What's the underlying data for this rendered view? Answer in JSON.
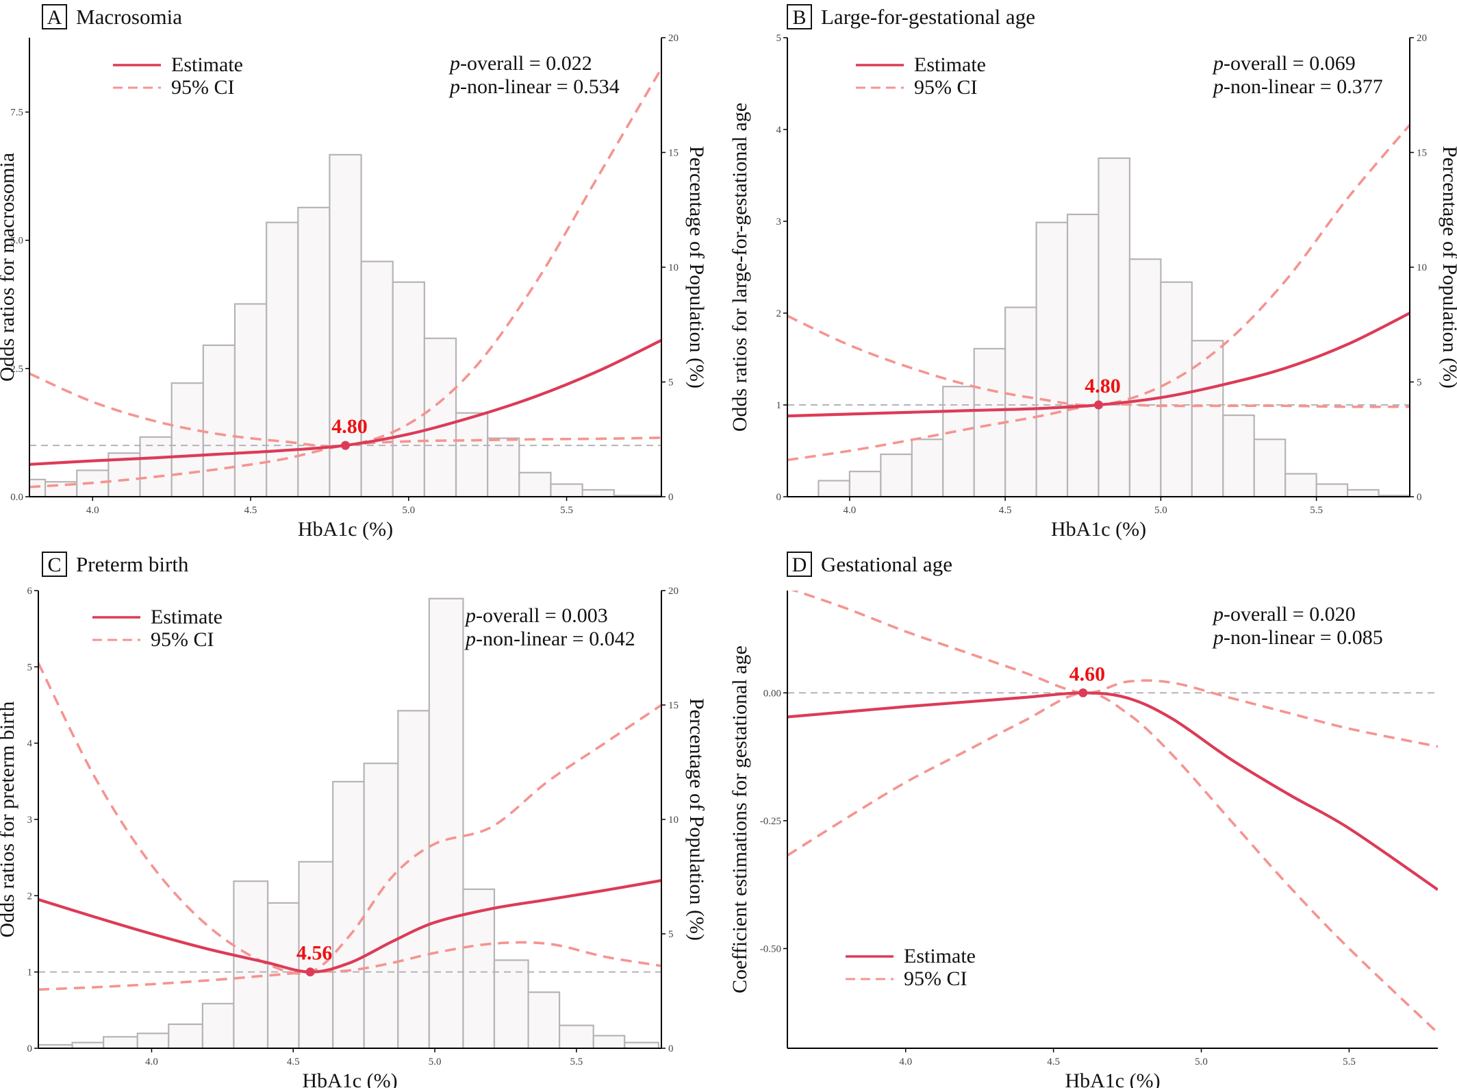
{
  "colors": {
    "estimate": "#dc3b57",
    "ci": "#f59490",
    "ref_line": "#b4b4b8",
    "bar_fill": "#f9f7f8",
    "bar_stroke": "#b6b4b6",
    "ref_label": "#ee1111",
    "axis": "#000000"
  },
  "legend": {
    "estimate": "Estimate",
    "ci": "95% CI"
  },
  "chart_data": [
    {
      "type": "line",
      "letter": "A",
      "title": "Macrosomia",
      "xlabel": "HbA1c (%)",
      "ylabel": "Odds ratios for macrosomia",
      "y2label": "Percentage of Population (%)",
      "xlim": [
        3.8,
        5.8
      ],
      "ylim": [
        0,
        8.95
      ],
      "y2lim": [
        0,
        20
      ],
      "xticks": [
        "4.0",
        "4.5",
        "5.0",
        "5.5"
      ],
      "yticks": [
        "0.0",
        "2.5",
        "5.0",
        "7.5"
      ],
      "y2ticks": [
        "0",
        "5",
        "10",
        "15",
        "20"
      ],
      "grid": false,
      "legend_position": "top-left",
      "p_overall_label": "-overall = 0.022",
      "p_nonlinear_label": "-non-linear = 0.534",
      "ref": {
        "x": 4.8,
        "y": 1,
        "label": "4.80"
      },
      "hline": 1,
      "histogram": {
        "bin_edges": [
          3.75,
          3.85,
          3.95,
          4.05,
          4.15,
          4.25,
          4.35,
          4.45,
          4.55,
          4.65,
          4.75,
          4.85,
          4.95,
          5.05,
          5.15,
          5.25,
          5.35,
          5.45,
          5.55,
          5.65,
          5.75,
          5.85
        ],
        "percent": [
          0.75,
          0.65,
          1.15,
          1.9,
          2.6,
          4.95,
          6.6,
          8.4,
          11.95,
          12.6,
          14.9,
          10.25,
          9.35,
          6.9,
          3.65,
          2.55,
          1.05,
          0.55,
          0.3,
          0.05,
          0.05
        ]
      },
      "estimate": {
        "x": [
          3.8,
          4.0,
          4.2,
          4.4,
          4.6,
          4.8,
          5.0,
          5.2,
          5.4,
          5.6,
          5.8
        ],
        "y": [
          0.63,
          0.7,
          0.76,
          0.83,
          0.9,
          1.0,
          1.22,
          1.55,
          1.95,
          2.45,
          3.05
        ]
      },
      "ci_upper": {
        "x": [
          3.8,
          4.0,
          4.2,
          4.4,
          4.6,
          4.8,
          5.0,
          5.2,
          5.4,
          5.6,
          5.8
        ],
        "y": [
          2.4,
          1.85,
          1.47,
          1.22,
          1.08,
          1.0,
          1.42,
          2.45,
          4.15,
          6.25,
          8.35
        ]
      },
      "ci_lower": {
        "x": [
          3.8,
          4.0,
          4.2,
          4.4,
          4.6,
          4.8,
          5.0,
          5.2,
          5.4,
          5.6,
          5.8
        ],
        "y": [
          0.19,
          0.27,
          0.39,
          0.54,
          0.73,
          1.0,
          1.08,
          1.1,
          1.12,
          1.13,
          1.15
        ]
      }
    },
    {
      "type": "line",
      "letter": "B",
      "title": "Large-for-gestational age",
      "xlabel": "HbA1c (%)",
      "ylabel": "Odds ratios for large-for-gestational age",
      "y2label": "Percentage of Population (%)",
      "xlim": [
        3.8,
        5.8
      ],
      "ylim": [
        0,
        5
      ],
      "y2lim": [
        0,
        20
      ],
      "xticks": [
        "4.0",
        "4.5",
        "5.0",
        "5.5"
      ],
      "yticks": [
        "0",
        "1",
        "2",
        "3",
        "4",
        "5"
      ],
      "y2ticks": [
        "0",
        "5",
        "10",
        "15",
        "20"
      ],
      "grid": false,
      "legend_position": "top-left",
      "p_overall_label": "-overall = 0.069",
      "p_nonlinear_label": "-non-linear = 0.377",
      "ref": {
        "x": 4.8,
        "y": 1,
        "label": "4.80"
      },
      "hline": 1,
      "histogram": {
        "bin_edges": [
          3.9,
          4.0,
          4.1,
          4.2,
          4.3,
          4.4,
          4.5,
          4.6,
          4.7,
          4.8,
          4.9,
          5.0,
          5.1,
          5.2,
          5.3,
          5.4,
          5.5,
          5.6,
          5.7,
          5.8
        ],
        "percent": [
          0.7,
          1.1,
          1.85,
          2.5,
          4.8,
          6.45,
          8.25,
          11.95,
          12.3,
          14.75,
          10.35,
          9.35,
          6.8,
          3.55,
          2.5,
          1.0,
          0.55,
          0.3,
          0.05
        ]
      },
      "estimate": {
        "x": [
          3.8,
          4.0,
          4.2,
          4.4,
          4.6,
          4.8,
          5.0,
          5.2,
          5.4,
          5.6,
          5.8
        ],
        "y": [
          0.88,
          0.9,
          0.92,
          0.94,
          0.96,
          1.0,
          1.08,
          1.22,
          1.4,
          1.66,
          2.0
        ]
      },
      "ci_upper": {
        "x": [
          3.8,
          4.0,
          4.2,
          4.4,
          4.6,
          4.8,
          5.0,
          5.2,
          5.4,
          5.6,
          5.8
        ],
        "y": [
          1.97,
          1.65,
          1.4,
          1.2,
          1.07,
          1.0,
          1.2,
          1.65,
          2.35,
          3.25,
          4.05
        ]
      },
      "ci_lower": {
        "x": [
          3.8,
          4.0,
          4.2,
          4.4,
          4.6,
          4.8,
          5.0,
          5.2,
          5.4,
          5.6,
          5.8
        ],
        "y": [
          0.4,
          0.5,
          0.62,
          0.75,
          0.87,
          1.0,
          0.99,
          0.99,
          0.99,
          0.98,
          0.98
        ]
      }
    },
    {
      "type": "line",
      "letter": "C",
      "title": "Preterm birth",
      "xlabel": "HbA1c (%)",
      "ylabel": "Odds ratios for preterm birth",
      "y2label": "Percentage of Population (%)",
      "xlim": [
        3.6,
        5.8
      ],
      "ylim": [
        0,
        6
      ],
      "y2lim": [
        0,
        20
      ],
      "xticks": [
        "4.0",
        "4.5",
        "5.0",
        "5.5"
      ],
      "yticks": [
        "0",
        "1",
        "2",
        "3",
        "4",
        "5",
        "6"
      ],
      "y2ticks": [
        "0",
        "5",
        "10",
        "15",
        "20"
      ],
      "grid": false,
      "legend_position": "top-left",
      "p_overall_label": "-overall = 0.003",
      "p_nonlinear_label": "-non-linear = 0.042",
      "ref": {
        "x": 4.56,
        "y": 1,
        "label": "4.56"
      },
      "hline": 1,
      "histogram": {
        "bin_edges": [
          3.6,
          3.72,
          3.83,
          3.95,
          4.06,
          4.18,
          4.29,
          4.41,
          4.52,
          4.64,
          4.75,
          4.87,
          4.98,
          5.1,
          5.21,
          5.33,
          5.44,
          5.56,
          5.67,
          5.79
        ],
        "percent": [
          0.15,
          0.25,
          0.5,
          0.65,
          1.05,
          1.95,
          7.3,
          6.35,
          8.15,
          11.65,
          12.45,
          14.75,
          19.65,
          6.95,
          3.85,
          2.45,
          1.0,
          0.55,
          0.25
        ]
      },
      "estimate": {
        "x": [
          3.6,
          3.8,
          4.0,
          4.2,
          4.4,
          4.56,
          4.7,
          4.85,
          5.0,
          5.2,
          5.4,
          5.6,
          5.8
        ],
        "y": [
          1.95,
          1.72,
          1.5,
          1.3,
          1.13,
          1.0,
          1.12,
          1.4,
          1.65,
          1.83,
          1.95,
          2.07,
          2.2
        ]
      },
      "ci_upper": {
        "x": [
          3.6,
          3.8,
          4.0,
          4.2,
          4.4,
          4.56,
          4.7,
          4.85,
          5.0,
          5.2,
          5.4,
          5.6,
          5.8
        ],
        "y": [
          5.05,
          3.55,
          2.4,
          1.6,
          1.12,
          1.0,
          1.48,
          2.25,
          2.68,
          2.9,
          3.5,
          4.0,
          4.5
        ]
      },
      "ci_lower": {
        "x": [
          3.6,
          3.8,
          4.0,
          4.2,
          4.4,
          4.56,
          4.7,
          4.85,
          5.0,
          5.2,
          5.4,
          5.6,
          5.8
        ],
        "y": [
          0.77,
          0.8,
          0.84,
          0.89,
          0.95,
          1.0,
          1.02,
          1.12,
          1.25,
          1.37,
          1.37,
          1.2,
          1.08
        ]
      }
    },
    {
      "type": "line",
      "letter": "D",
      "title": "Gestational age",
      "xlabel": "HbA1c (%)",
      "ylabel": "Coefficient estimations for gestational age",
      "xlim": [
        3.6,
        5.8
      ],
      "ylim": [
        -0.695,
        0.2
      ],
      "xticks": [
        "4.0",
        "4.5",
        "5.0",
        "5.5"
      ],
      "yticks": [
        "-0.50",
        "-0.25",
        "0.00"
      ],
      "grid": false,
      "legend_position": "bottom-left",
      "p_overall_label": "-overall = 0.020",
      "p_nonlinear_label": "-non-linear = 0.085",
      "ref": {
        "x": 4.6,
        "y": 0,
        "label": "4.60"
      },
      "hline": 0,
      "estimate": {
        "x": [
          3.6,
          3.8,
          4.0,
          4.2,
          4.4,
          4.6,
          4.75,
          4.9,
          5.1,
          5.3,
          5.5,
          5.8
        ],
        "y": [
          -0.047,
          -0.037,
          -0.027,
          -0.018,
          -0.009,
          0.0,
          -0.01,
          -0.05,
          -0.13,
          -0.2,
          -0.265,
          -0.385
        ]
      },
      "ci_upper": {
        "x": [
          3.6,
          3.8,
          4.0,
          4.2,
          4.4,
          4.6,
          4.75,
          4.9,
          5.1,
          5.3,
          5.5,
          5.8
        ],
        "y": [
          0.205,
          0.165,
          0.12,
          0.08,
          0.04,
          0.0,
          0.022,
          0.02,
          -0.01,
          -0.04,
          -0.07,
          -0.105
        ]
      },
      "ci_lower": {
        "x": [
          3.6,
          3.8,
          4.0,
          4.2,
          4.4,
          4.6,
          4.75,
          4.9,
          5.1,
          5.3,
          5.5,
          5.8
        ],
        "y": [
          -0.318,
          -0.245,
          -0.175,
          -0.115,
          -0.055,
          0.0,
          -0.04,
          -0.12,
          -0.25,
          -0.38,
          -0.5,
          -0.665
        ]
      }
    }
  ]
}
